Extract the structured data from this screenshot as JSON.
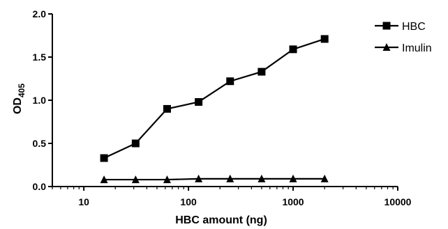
{
  "chart_data": {
    "type": "line",
    "xlabel": "HBC amount (ng)",
    "ylabel": "OD",
    "ylabel_subscript": "405",
    "xscale": "log",
    "xlim": [
      5,
      10000
    ],
    "ylim": [
      0,
      2.0
    ],
    "x_ticks": [
      10,
      100,
      1000,
      10000
    ],
    "x_tick_labels": [
      "10",
      "100",
      "1000",
      "10000"
    ],
    "y_ticks": [
      0,
      0.5,
      1.0,
      1.5,
      2.0
    ],
    "y_tick_labels": [
      "0.0",
      "0.5",
      "1.0",
      "1.5",
      "2.0"
    ],
    "grid": false,
    "legend_position": "top-right",
    "x": [
      15.6,
      31.25,
      62.5,
      125,
      250,
      500,
      1000,
      2000
    ],
    "series": [
      {
        "name": "HBC",
        "marker": "square",
        "values": [
          0.33,
          0.5,
          0.9,
          0.98,
          1.22,
          1.33,
          1.59,
          1.71
        ]
      },
      {
        "name": "Imulin",
        "marker": "triangle",
        "values": [
          0.08,
          0.08,
          0.08,
          0.09,
          0.09,
          0.09,
          0.09,
          0.09
        ]
      }
    ]
  }
}
